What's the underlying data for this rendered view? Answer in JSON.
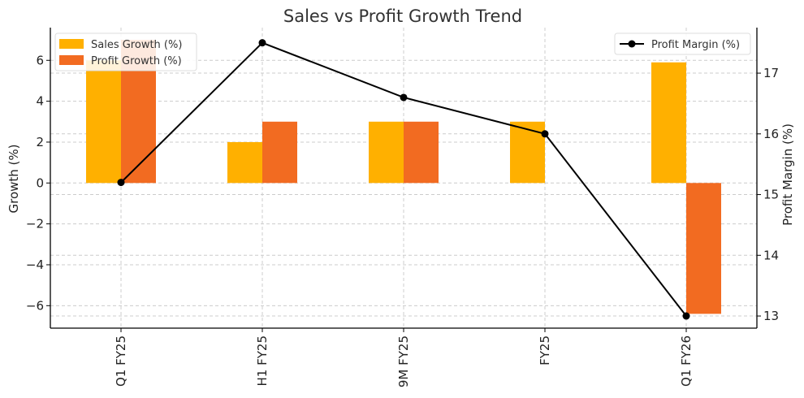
{
  "chart_data": {
    "type": "bar",
    "title": "Sales vs Profit Growth Trend",
    "categories": [
      "Q1 FY25",
      "H1 FY25",
      "9M FY25",
      "FY25",
      "Q1 FY26"
    ],
    "series": [
      {
        "name": "Sales Growth (%)",
        "type": "bar",
        "axis": "left",
        "color": "#FFB000",
        "values": [
          6.0,
          2.0,
          3.0,
          3.0,
          5.9
        ]
      },
      {
        "name": "Profit Growth (%)",
        "type": "bar",
        "axis": "left",
        "color": "#F26B21",
        "values": [
          7.0,
          3.0,
          3.0,
          0.0,
          -6.4
        ]
      },
      {
        "name": "Profit Margin (%)",
        "type": "line",
        "axis": "right",
        "color": "#000000",
        "values": [
          15.2,
          17.5,
          16.6,
          16.0,
          13.0
        ]
      }
    ],
    "ylabel": "Growth (%)",
    "ylabel_right": "Profit Margin (%)",
    "ylim": [
      -7.1,
      7.6
    ],
    "ylim_right": [
      12.8,
      17.75
    ],
    "yticks": [
      "6",
      "4",
      "2",
      "0",
      "−2",
      "−4",
      "−6"
    ],
    "yticks_right": [
      "17",
      "16",
      "15",
      "14",
      "13"
    ],
    "grid": true,
    "legend_left": "top-left",
    "legend_right": "top-right"
  }
}
